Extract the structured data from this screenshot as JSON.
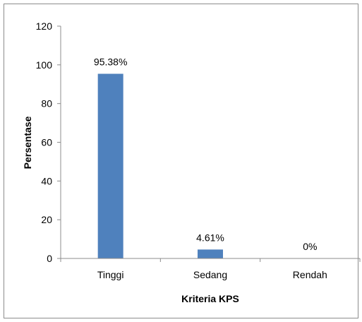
{
  "chart_data": {
    "type": "bar",
    "categories": [
      "Tinggi",
      "Sedang",
      "Rendah"
    ],
    "values": [
      95.38,
      4.61,
      0
    ],
    "data_labels": [
      "95.38%",
      "4.61%",
      "0%"
    ],
    "title": "",
    "xlabel": "Kriteria KPS",
    "ylabel": "Persentase",
    "ylim": [
      0,
      120
    ],
    "yticks": [
      0,
      20,
      40,
      60,
      80,
      100,
      120
    ],
    "grid": false,
    "legend": "none",
    "bar_color": "#4f81bd"
  }
}
